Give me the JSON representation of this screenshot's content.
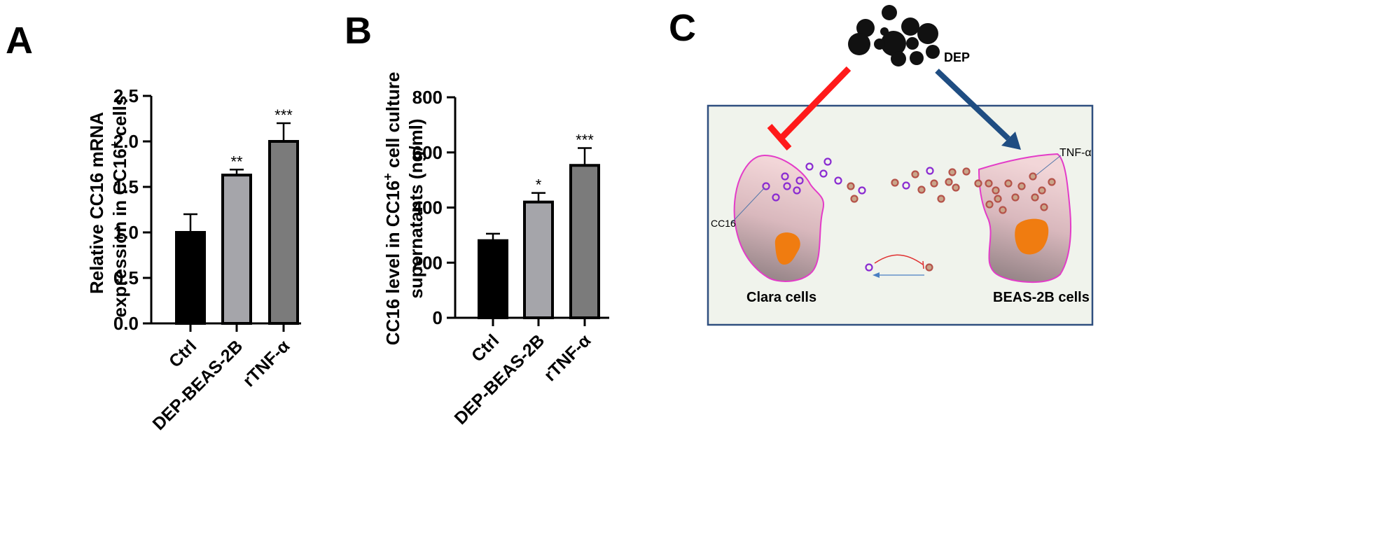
{
  "panels": {
    "a": {
      "letter": "A"
    },
    "b": {
      "letter": "B"
    },
    "c": {
      "letter": "C"
    }
  },
  "colors": {
    "bar_ctrl": "#000000",
    "bar_dep": "#a5a5aa",
    "bar_tnf": "#7b7b7b",
    "inhibit_arrow": "#ff1a1a",
    "stimulate_arrow": "#1f4d82",
    "box_border": "#2f4f7f",
    "box_fill": "#f0f3ec",
    "cell_border": "#e33cc8",
    "nucleus": "#f07c10",
    "cc16_dot": "#8a2bd1",
    "tnf_dot": "#b5534a"
  },
  "chart_data": [
    {
      "type": "bar",
      "categories": [
        "Ctrl",
        "DEP-BEAS-2B",
        "rTNF-α"
      ],
      "values": [
        1.0,
        1.63,
        2.0
      ],
      "errors": [
        0.2,
        0.06,
        0.2
      ],
      "significance": [
        "",
        "**",
        "***"
      ],
      "ylabel_line1": "Relative CC16 mRNA",
      "ylabel_line2": "expression in CC16",
      "ylabel_sup": "+",
      "ylabel_line2_end": " cells",
      "ylim": [
        0,
        2.5
      ],
      "yticks": [
        "0.0",
        "0.5",
        "1.0",
        "1.5",
        "2.0",
        "2.5"
      ],
      "grid": false
    },
    {
      "type": "bar",
      "categories": [
        "Ctrl",
        "DEP-BEAS-2B",
        "rTNF-α"
      ],
      "values": [
        280,
        420,
        553
      ],
      "errors": [
        25,
        33,
        63
      ],
      "significance": [
        "",
        "*",
        "***"
      ],
      "ylabel_line1": "CC16 level in CC16",
      "ylabel_sup": "+",
      "ylabel_line1_end": " cell culture",
      "ylabel_line2": "supernatants (ng/ml)",
      "ylim": [
        0,
        800
      ],
      "yticks": [
        "0",
        "200",
        "400",
        "600",
        "800"
      ],
      "grid": false
    }
  ],
  "diagram": {
    "dep_label": "DEP",
    "tnf_label": "TNF-α",
    "cc16_label": "CC16",
    "clara_label": "Clara cells",
    "beas_label": "BEAS-2B cells"
  }
}
